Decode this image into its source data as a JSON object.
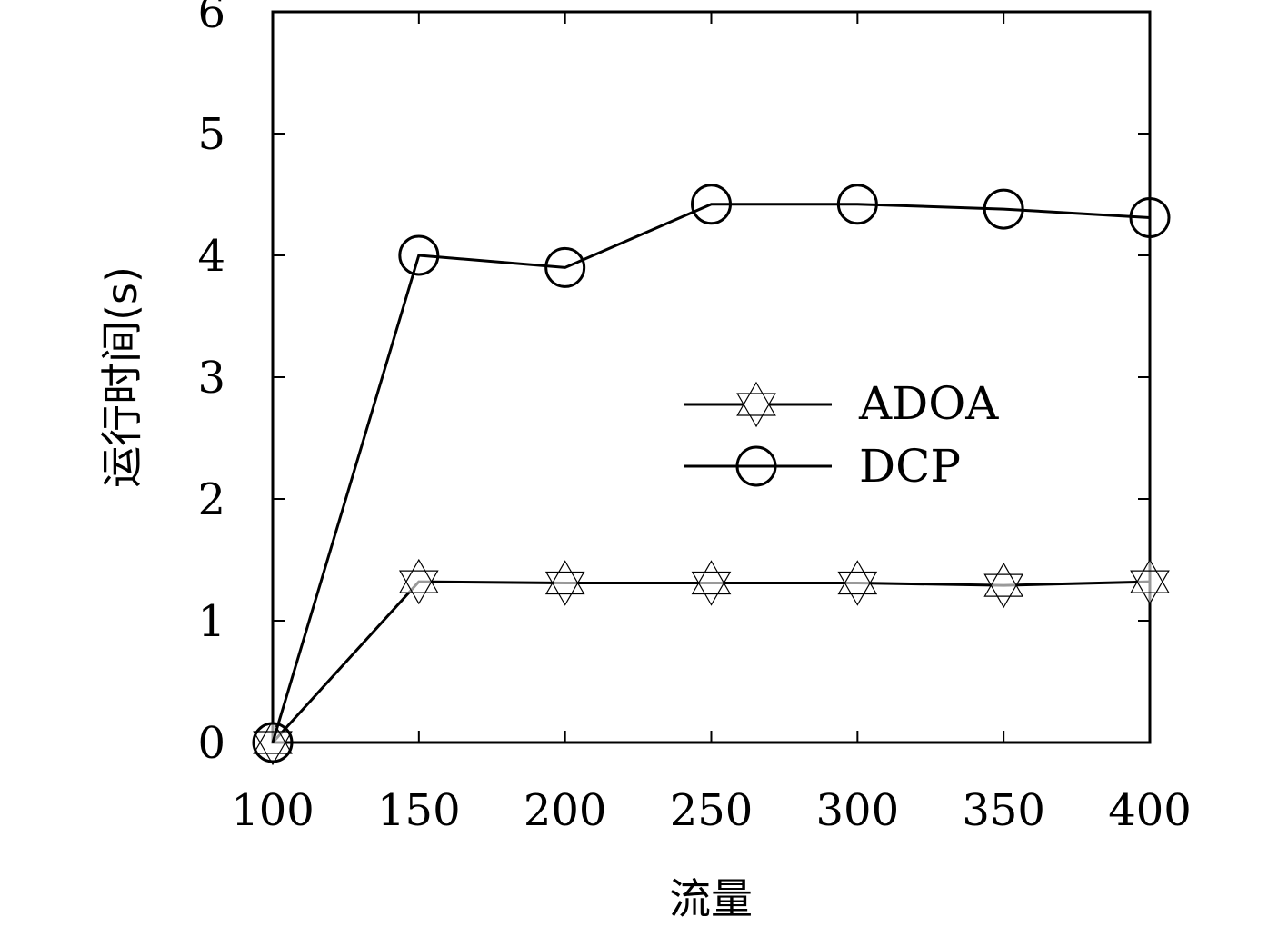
{
  "chart_data": {
    "type": "line",
    "x": [
      100,
      150,
      200,
      250,
      300,
      350,
      400
    ],
    "xlabel": "流量",
    "ylabel": "运行时间(s)",
    "xticks": [
      "100",
      "150",
      "200",
      "250",
      "300",
      "350",
      "400"
    ],
    "yticks": [
      "0",
      "1",
      "2",
      "3",
      "4",
      "5",
      "6"
    ],
    "xlim": [
      100,
      400
    ],
    "ylim": [
      0,
      6
    ],
    "grid": false,
    "legend_position": "center-right",
    "series": [
      {
        "name": "ADOA",
        "marker": "star",
        "values": [
          0.0,
          1.32,
          1.31,
          1.31,
          1.31,
          1.29,
          1.32
        ]
      },
      {
        "name": "DCP",
        "marker": "circle",
        "values": [
          0.0,
          4.0,
          3.9,
          4.42,
          4.42,
          4.38,
          4.31
        ]
      }
    ]
  }
}
